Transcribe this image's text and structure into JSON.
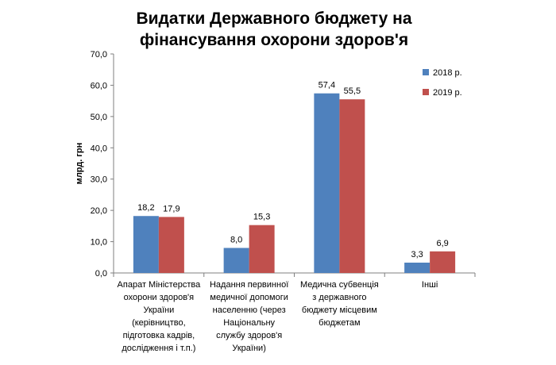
{
  "chart_data": {
    "type": "bar",
    "title_lines": [
      "Видатки Державного бюджету на",
      "фінансування охорони здоров'я"
    ],
    "ylabel": "млрд. грн",
    "xlabel": "",
    "ylim": [
      0,
      70
    ],
    "yticks": [
      "0,0",
      "10,0",
      "20,0",
      "30,0",
      "40,0",
      "50,0",
      "60,0",
      "70,0"
    ],
    "grid": false,
    "legend_position": "top-right",
    "categories": [
      [
        "Апарат Міністерства",
        "охорони здоров'я",
        "України",
        "(керівництво,",
        "підготовка кадрів,",
        "дослідження і т.п.)"
      ],
      [
        "Надання первинної",
        "медичної допомоги",
        "населенню (через",
        "Національну",
        "службу здоров'я",
        "України)"
      ],
      [
        "Медична субвенція",
        "з державного",
        "бюджету місцевим",
        "бюджетам"
      ],
      [
        "Інші"
      ]
    ],
    "series": [
      {
        "name": "2018 р.",
        "color": "#4F81BD",
        "values": [
          18.2,
          8.0,
          57.4,
          3.3
        ],
        "labels": [
          "18,2",
          "8,0",
          "57,4",
          "3,3"
        ]
      },
      {
        "name": "2019 р.",
        "color": "#C0504D",
        "values": [
          17.9,
          15.3,
          55.5,
          6.9
        ],
        "labels": [
          "17,9",
          "15,3",
          "55,5",
          "6,9"
        ]
      }
    ]
  }
}
